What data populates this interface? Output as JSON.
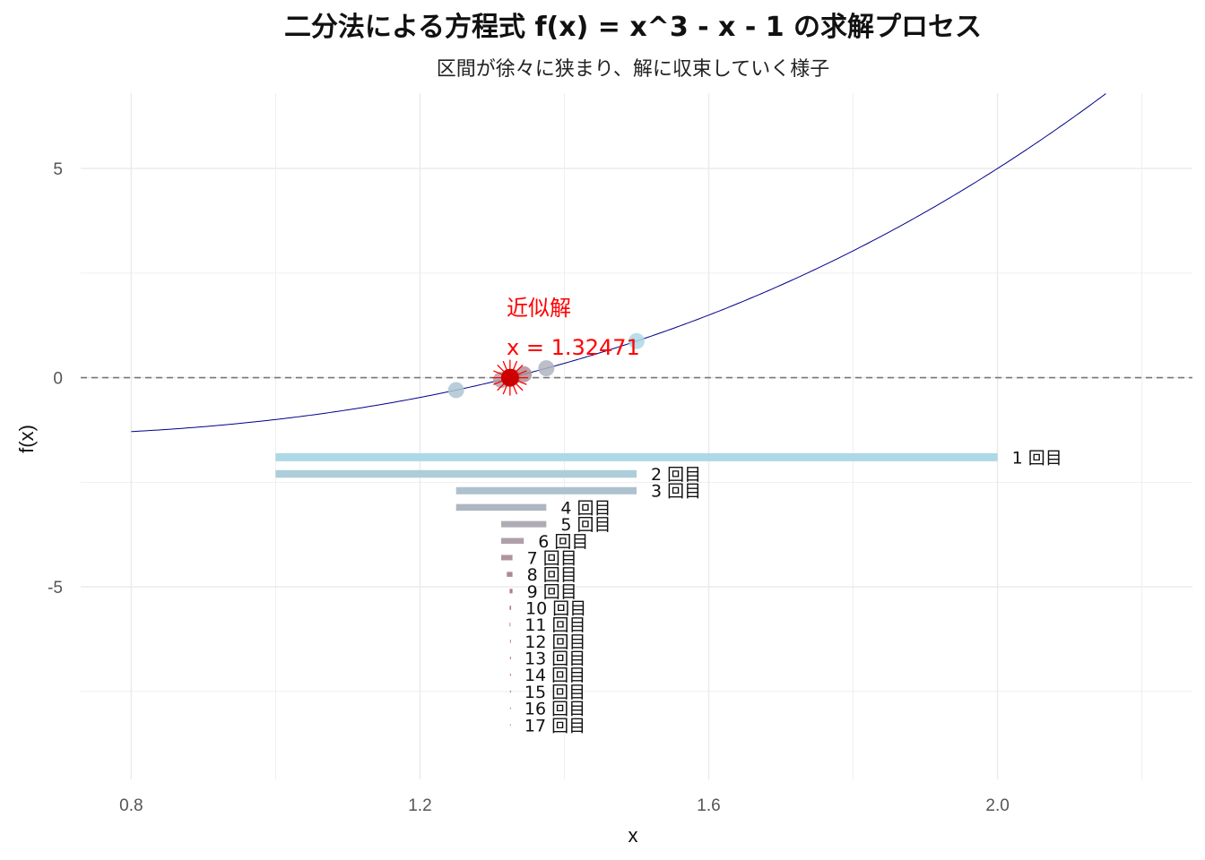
{
  "chart_data": {
    "type": "line",
    "title": "二分法による方程式 f(x) = x^3 - x - 1 の求解プロセス",
    "subtitle": "区間が徐々に狭まり、解に収束していく様子",
    "xlabel": "x",
    "ylabel": "f(x)",
    "xlim": [
      0.73,
      2.27
    ],
    "ylim": [
      -9.6,
      6.8
    ],
    "x_ticks": [
      0.8,
      1.2,
      1.6,
      2.0
    ],
    "x_tick_labels": [
      "0.8",
      "1.2",
      "1.6",
      "2.0"
    ],
    "y_ticks": [
      -5,
      0,
      5
    ],
    "y_tick_labels": [
      "-5",
      "0",
      "5"
    ],
    "grid": true,
    "reference_line": {
      "y": 0,
      "style": "dashed",
      "color": "#777777"
    },
    "curve": {
      "function": "x^3 - x - 1",
      "x_range": [
        0.8,
        2.15
      ],
      "color": "#00008b"
    },
    "midpoints": [
      {
        "iteration": 1,
        "x": 1.5,
        "y": 0.875
      },
      {
        "iteration": 2,
        "x": 1.25,
        "y": -0.297
      },
      {
        "iteration": 3,
        "x": 1.375,
        "y": 0.2246
      },
      {
        "iteration": 4,
        "x": 1.3125,
        "y": -0.0515
      },
      {
        "iteration": 5,
        "x": 1.34375,
        "y": 0.0826
      },
      {
        "iteration": 6,
        "x": 1.328125,
        "y": 0.0146
      }
    ],
    "intervals": [
      {
        "iteration": 1,
        "a": 1.0,
        "b": 2.0,
        "y": -1.9,
        "label": "1 回目"
      },
      {
        "iteration": 2,
        "a": 1.0,
        "b": 1.5,
        "y": -2.3,
        "label": "2 回目"
      },
      {
        "iteration": 3,
        "a": 1.25,
        "b": 1.5,
        "y": -2.7,
        "label": "3 回目"
      },
      {
        "iteration": 4,
        "a": 1.25,
        "b": 1.375,
        "y": -3.1,
        "label": "4 回目"
      },
      {
        "iteration": 5,
        "a": 1.3125,
        "b": 1.375,
        "y": -3.5,
        "label": "5 回目"
      },
      {
        "iteration": 6,
        "a": 1.3125,
        "b": 1.34375,
        "y": -3.9,
        "label": "6 回目"
      },
      {
        "iteration": 7,
        "a": 1.3125,
        "b": 1.328125,
        "y": -4.3,
        "label": "7 回目"
      },
      {
        "iteration": 8,
        "a": 1.3203125,
        "b": 1.328125,
        "y": -4.7,
        "label": "8 回目"
      },
      {
        "iteration": 9,
        "a": 1.32421875,
        "b": 1.328125,
        "y": -5.1,
        "label": "9 回目"
      },
      {
        "iteration": 10,
        "a": 1.32421875,
        "b": 1.326171875,
        "y": -5.5,
        "label": "10 回目"
      },
      {
        "iteration": 11,
        "a": 1.32421875,
        "b": 1.3251953125,
        "y": -5.9,
        "label": "11 回目"
      },
      {
        "iteration": 12,
        "a": 1.32470703125,
        "b": 1.3251953125,
        "y": -6.3,
        "label": "12 回目"
      },
      {
        "iteration": 13,
        "a": 1.32470703125,
        "b": 1.324951171875,
        "y": -6.7,
        "label": "13 回目"
      },
      {
        "iteration": 14,
        "a": 1.32470703125,
        "b": 1.3248291015625,
        "y": -7.1,
        "label": "14 回目"
      },
      {
        "iteration": 15,
        "a": 1.32470703125,
        "b": 1.32476806640625,
        "y": -7.5,
        "label": "15 回目"
      },
      {
        "iteration": 16,
        "a": 1.32470703125,
        "b": 1.324737548828125,
        "y": -7.9,
        "label": "16 回目"
      },
      {
        "iteration": 17,
        "a": 1.32470703125,
        "b": 1.3247222900390625,
        "y": -8.3,
        "label": "17 回目"
      }
    ],
    "root": {
      "x": 1.32471,
      "y": 0
    },
    "annotation_lines": [
      "近似解",
      "x = 1.32471"
    ],
    "colors": {
      "interval_start": "#add8e6",
      "interval_end": "#b22222",
      "root_point": "#cc0000",
      "root_star": "#ff0000",
      "annotation": "#ff0000",
      "grid": "#ebebeb"
    }
  }
}
